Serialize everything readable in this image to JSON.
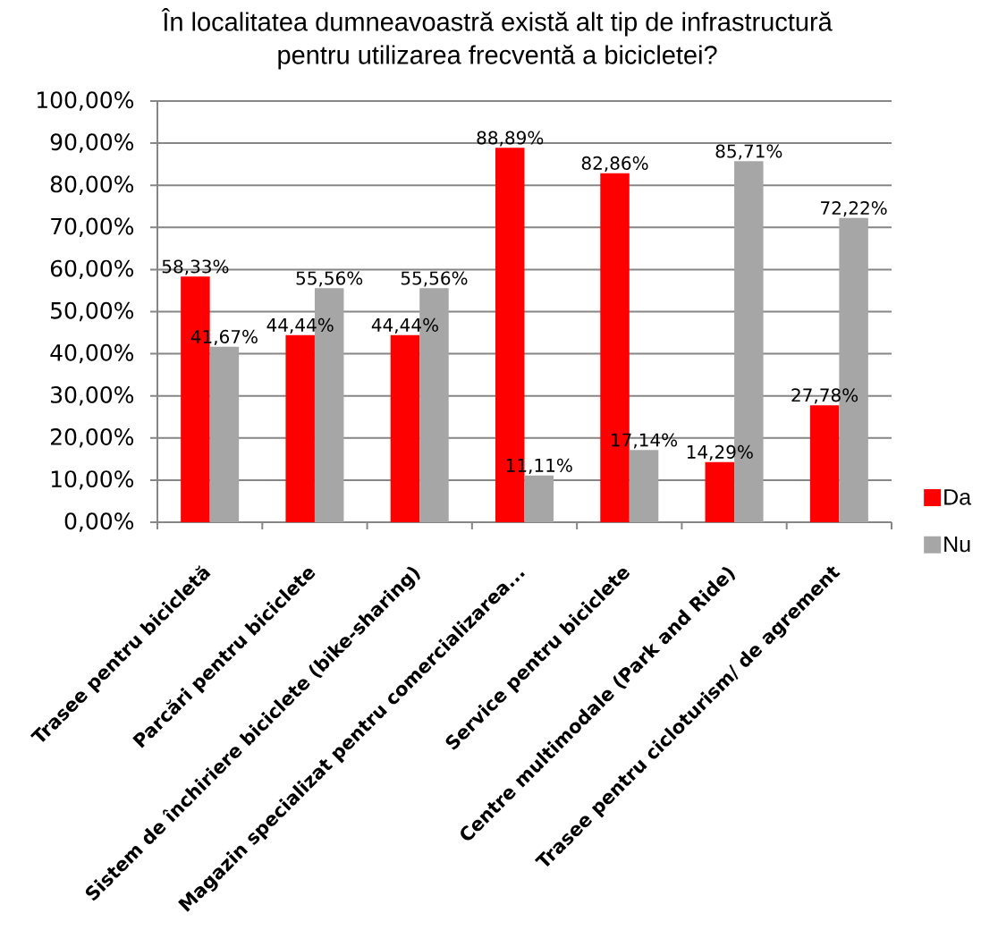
{
  "chart_data": {
    "type": "bar",
    "title": "În localitatea dumneavoastră există alt tip de infrastructură pentru utilizarea frecventă a bicicletei?",
    "categories": [
      "Trasee pentru bicicletă",
      "Parcări pentru biciclete",
      "Sistem de închiriere biciclete (bike-sharing)",
      "Magazin specializat pentru comercializarea...",
      "Service pentru biciclete",
      "Centre multimodale (Park and Ride)",
      "Trasee pentru cicloturism/ de agrement"
    ],
    "series": [
      {
        "name": "Da",
        "color": "#ff0000",
        "values": [
          58.33,
          44.44,
          44.44,
          88.89,
          82.86,
          14.29,
          27.78
        ],
        "value_labels": [
          "58,33%",
          "44,44%",
          "44,44%",
          "88,89%",
          "82,86%",
          "14,29%",
          "27,78%"
        ]
      },
      {
        "name": "Nu",
        "color": "#a6a6a6",
        "values": [
          41.67,
          55.56,
          55.56,
          11.11,
          17.14,
          85.71,
          72.22
        ],
        "value_labels": [
          "41,67%",
          "55,56%",
          "55,56%",
          "11,11%",
          "17,14%",
          "85,71%",
          "72,22%"
        ]
      }
    ],
    "ylim": [
      0,
      100
    ],
    "yticks": [
      {
        "value": 0,
        "label": "0,00%"
      },
      {
        "value": 10,
        "label": "10,00%"
      },
      {
        "value": 20,
        "label": "20,00%"
      },
      {
        "value": 30,
        "label": "30,00%"
      },
      {
        "value": 40,
        "label": "40,00%"
      },
      {
        "value": 50,
        "label": "50,00%"
      },
      {
        "value": 60,
        "label": "60,00%"
      },
      {
        "value": 70,
        "label": "70,00%"
      },
      {
        "value": 80,
        "label": "80,00%"
      },
      {
        "value": 90,
        "label": "90,00%"
      },
      {
        "value": 100,
        "label": "100,00%"
      }
    ],
    "grid": "y",
    "legend": "right"
  }
}
